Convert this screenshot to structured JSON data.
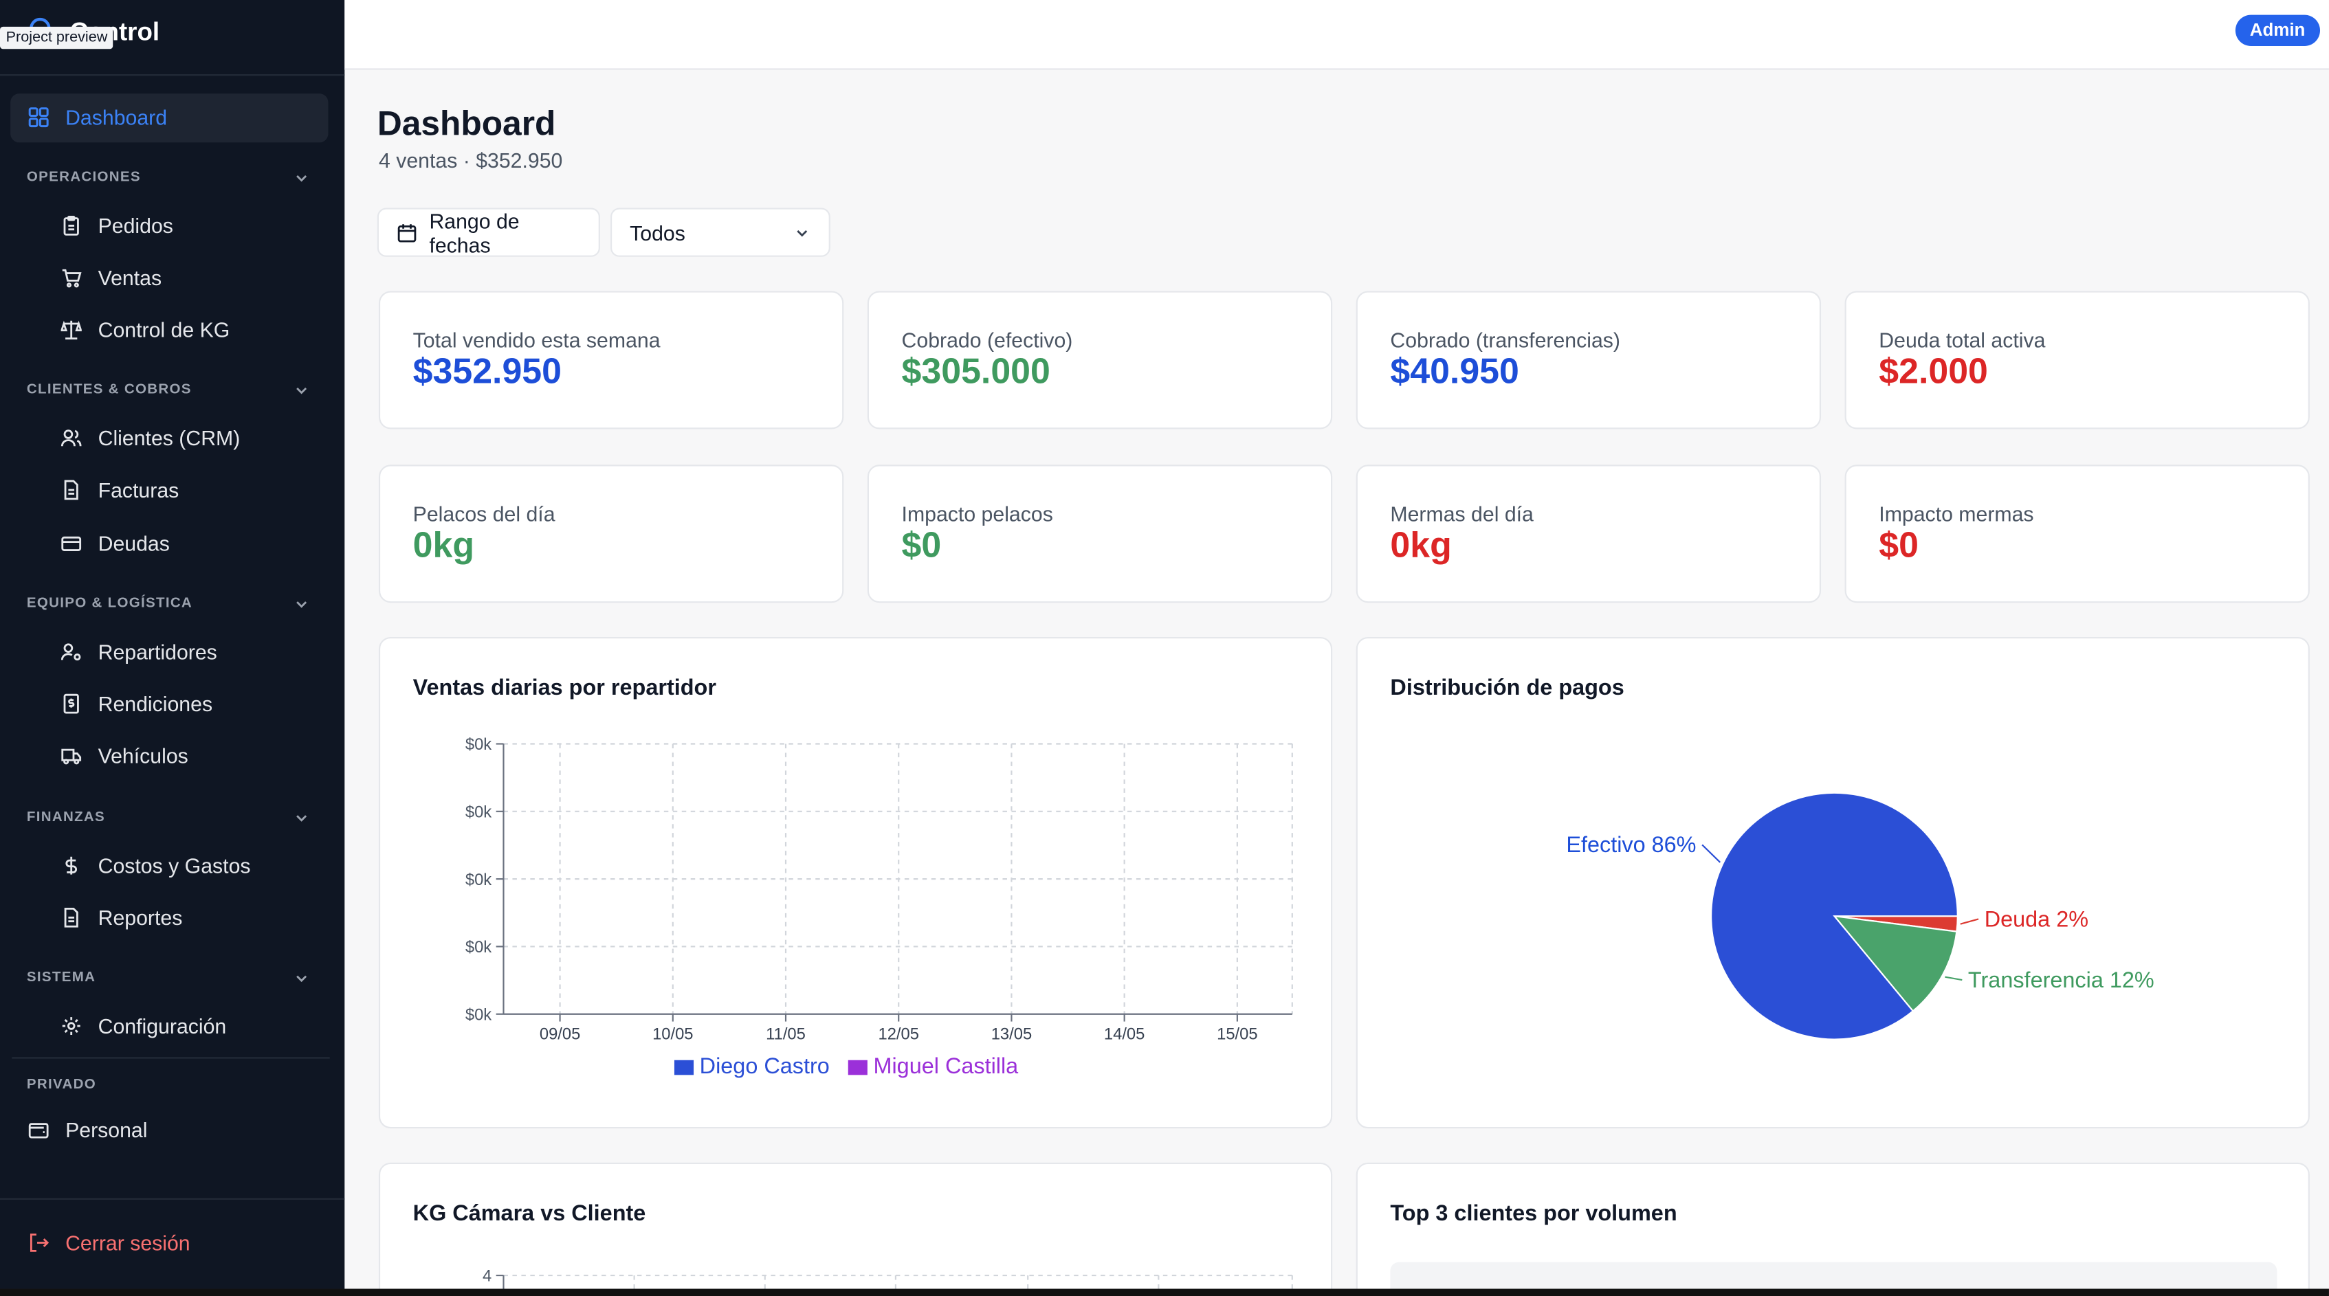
{
  "tooltip": "Project preview",
  "brand": {
    "name": "PolloControl",
    "visible_name": "Control"
  },
  "sidebar": {
    "dashboard": "Dashboard",
    "sections": {
      "operaciones": "OPERACIONES",
      "clientes": "CLIENTES & COBROS",
      "equipo": "EQUIPO & LOGÍSTICA",
      "finanzas": "FINANZAS",
      "sistema": "SISTEMA",
      "privado": "PRIVADO"
    },
    "items": {
      "pedidos": "Pedidos",
      "ventas": "Ventas",
      "control_kg": "Control de KG",
      "clientes_crm": "Clientes (CRM)",
      "facturas": "Facturas",
      "deudas": "Deudas",
      "repartidores": "Repartidores",
      "rendiciones": "Rendiciones",
      "vehiculos": "Vehículos",
      "costos": "Costos y Gastos",
      "reportes": "Reportes",
      "configuracion": "Configuración",
      "personal": "Personal"
    },
    "logout": "Cerrar sesión"
  },
  "topbar": {
    "role_badge": "Admin"
  },
  "page": {
    "title": "Dashboard",
    "subtitle": "4 ventas · $352.950",
    "date_range_button": "Rango de fechas",
    "filter_select": "Todos"
  },
  "kpis": [
    {
      "label": "Total vendido esta semana",
      "value": "$352.950",
      "color": "#1d4ed8"
    },
    {
      "label": "Cobrado (efectivo)",
      "value": "$305.000",
      "color": "#3f9a5f"
    },
    {
      "label": "Cobrado (transferencias)",
      "value": "$40.950",
      "color": "#1d4ed8"
    },
    {
      "label": "Deuda total activa",
      "value": "$2.000",
      "color": "#dc2626"
    },
    {
      "label": "Pelacos del día",
      "value": "0kg",
      "color": "#3f9a5f"
    },
    {
      "label": "Impacto pelacos",
      "value": "$0",
      "color": "#3f9a5f"
    },
    {
      "label": "Mermas del día",
      "value": "0kg",
      "color": "#dc2626"
    },
    {
      "label": "Impacto mermas",
      "value": "$0",
      "color": "#dc2626"
    }
  ],
  "cards": {
    "ventas_diarias": "Ventas diarias por repartidor",
    "distribucion": "Distribución de pagos",
    "kg_camara": "KG Cámara vs Cliente",
    "top_clientes": "Top 3 clientes por volumen"
  },
  "chart_data": [
    {
      "type": "line",
      "title": "Ventas diarias por repartidor",
      "categories": [
        "09/05",
        "10/05",
        "11/05",
        "12/05",
        "13/05",
        "14/05",
        "15/05"
      ],
      "y_tick_labels": [
        "$0k",
        "$0k",
        "$0k",
        "$0k",
        "$0k"
      ],
      "grid": true,
      "legend": "bottom",
      "series": [
        {
          "name": "Diego Castro",
          "color": "#2b4fd6",
          "values": [
            0,
            0,
            0,
            0,
            0,
            0,
            0
          ]
        },
        {
          "name": "Miguel Castilla",
          "color": "#9b30d9",
          "values": [
            0,
            0,
            0,
            0,
            0,
            0,
            0
          ]
        }
      ]
    },
    {
      "type": "pie",
      "title": "Distribución de pagos",
      "slices": [
        {
          "label": "Efectivo 86%",
          "value": 86,
          "color": "#2b4fd6"
        },
        {
          "label": "Deuda 2%",
          "value": 2,
          "color": "#dc3b32"
        },
        {
          "label": "Transferencia 12%",
          "value": 12,
          "color": "#4aa36b"
        }
      ]
    },
    {
      "type": "bar",
      "title": "KG Cámara vs Cliente",
      "y_tick_labels": [
        "4"
      ],
      "grid": true
    }
  ]
}
